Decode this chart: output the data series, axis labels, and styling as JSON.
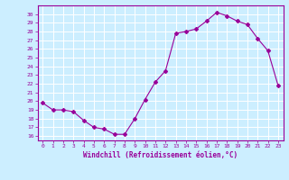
{
  "x": [
    0,
    1,
    2,
    3,
    4,
    5,
    6,
    7,
    8,
    9,
    10,
    11,
    12,
    13,
    14,
    15,
    16,
    17,
    18,
    19,
    20,
    21,
    22,
    23
  ],
  "y": [
    19.8,
    19.0,
    19.0,
    18.8,
    17.8,
    17.0,
    16.8,
    16.2,
    16.2,
    18.0,
    20.2,
    22.2,
    23.5,
    27.8,
    28.0,
    28.3,
    29.2,
    30.2,
    29.8,
    29.2,
    28.8,
    27.2,
    25.8,
    21.8
  ],
  "line_color": "#990099",
  "marker": "D",
  "marker_size": 2,
  "bg_color": "#cceeff",
  "grid_color": "#ffffff",
  "xlabel": "Windchill (Refroidissement éolien,°C)",
  "ylim": [
    15.5,
    31.0
  ],
  "xlim": [
    -0.5,
    23.5
  ],
  "yticks": [
    16,
    17,
    18,
    19,
    20,
    21,
    22,
    23,
    24,
    25,
    26,
    27,
    28,
    29,
    30
  ],
  "xticks": [
    0,
    1,
    2,
    3,
    4,
    5,
    6,
    7,
    8,
    9,
    10,
    11,
    12,
    13,
    14,
    15,
    16,
    17,
    18,
    19,
    20,
    21,
    22,
    23
  ],
  "tick_color": "#990099",
  "label_color": "#990099",
  "spine_color": "#990099",
  "title": ""
}
